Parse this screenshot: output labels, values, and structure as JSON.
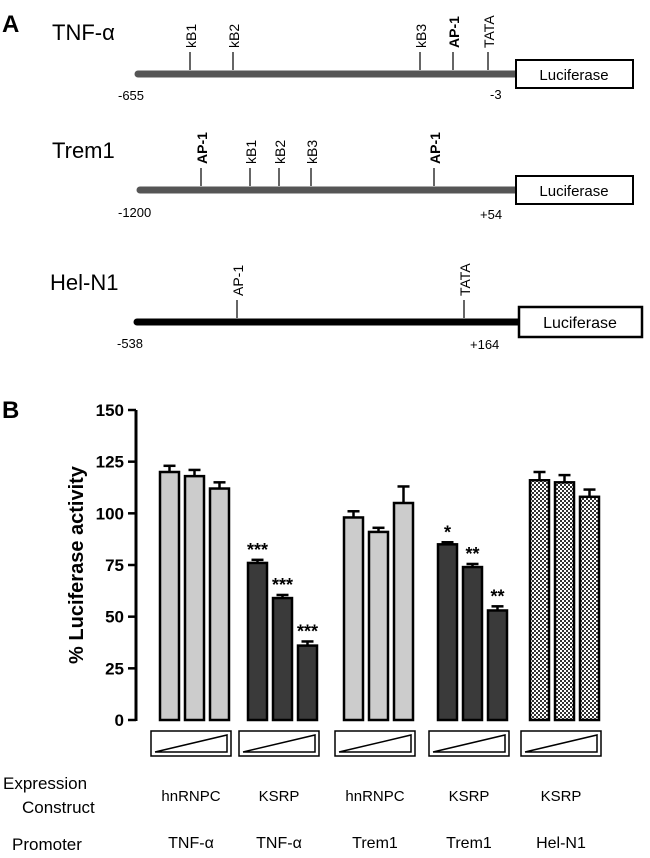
{
  "panel_a": {
    "label": "A",
    "constructs": [
      {
        "name": "TNF-α",
        "start_label": "-655",
        "end_label": "-3",
        "reporter": "Luciferase",
        "sites": [
          "kB1",
          "kB2",
          "kB3",
          "AP-1",
          "TATA"
        ]
      },
      {
        "name": "Trem1",
        "start_label": "-1200",
        "end_label": "+54",
        "reporter": "Luciferase",
        "sites": [
          "AP-1",
          "kB1",
          "kB2",
          "kB3",
          "AP-1"
        ]
      },
      {
        "name": "Hel-N1",
        "start_label": "-538",
        "end_label": "+164",
        "reporter": "Luciferase",
        "sites": [
          "AP-1",
          "TATA"
        ]
      }
    ]
  },
  "panel_b": {
    "label": "B",
    "row_label_expression": [
      "Expression",
      "Construct"
    ],
    "row_label_promoter": "Promoter",
    "colors": {
      "light": "#cccccc",
      "dark": "#3a3a3a",
      "checker": "#ffffff"
    }
  },
  "chart_data": {
    "type": "bar",
    "ylabel": "% Luciferase activity",
    "ylim": [
      0,
      150
    ],
    "yticks": [
      0,
      25,
      50,
      75,
      100,
      125,
      150
    ],
    "groups": [
      {
        "expression": "hnRNPC",
        "promoter": "TNF-α",
        "fill": "light",
        "values": [
          120,
          118,
          112
        ],
        "errors": [
          3,
          3,
          3
        ],
        "stars": [
          "",
          "",
          ""
        ]
      },
      {
        "expression": "KSRP",
        "promoter": "TNF-α",
        "fill": "dark",
        "values": [
          76,
          59,
          36
        ],
        "errors": [
          1.5,
          1.5,
          2
        ],
        "stars": [
          "***",
          "***",
          "***"
        ]
      },
      {
        "expression": "hnRNPC",
        "promoter": "Trem1",
        "fill": "light",
        "values": [
          98,
          91,
          105
        ],
        "errors": [
          3,
          2,
          8
        ],
        "stars": [
          "",
          "",
          ""
        ]
      },
      {
        "expression": "KSRP",
        "promoter": "Trem1",
        "fill": "dark",
        "values": [
          85,
          74,
          53
        ],
        "errors": [
          1,
          1.5,
          2
        ],
        "stars": [
          "*",
          "**",
          "**"
        ]
      },
      {
        "expression": "KSRP",
        "promoter": "Hel-N1",
        "fill": "checker",
        "values": [
          116,
          115,
          108
        ],
        "errors": [
          4,
          3.5,
          3.5
        ],
        "stars": [
          "",
          "",
          ""
        ]
      }
    ]
  }
}
